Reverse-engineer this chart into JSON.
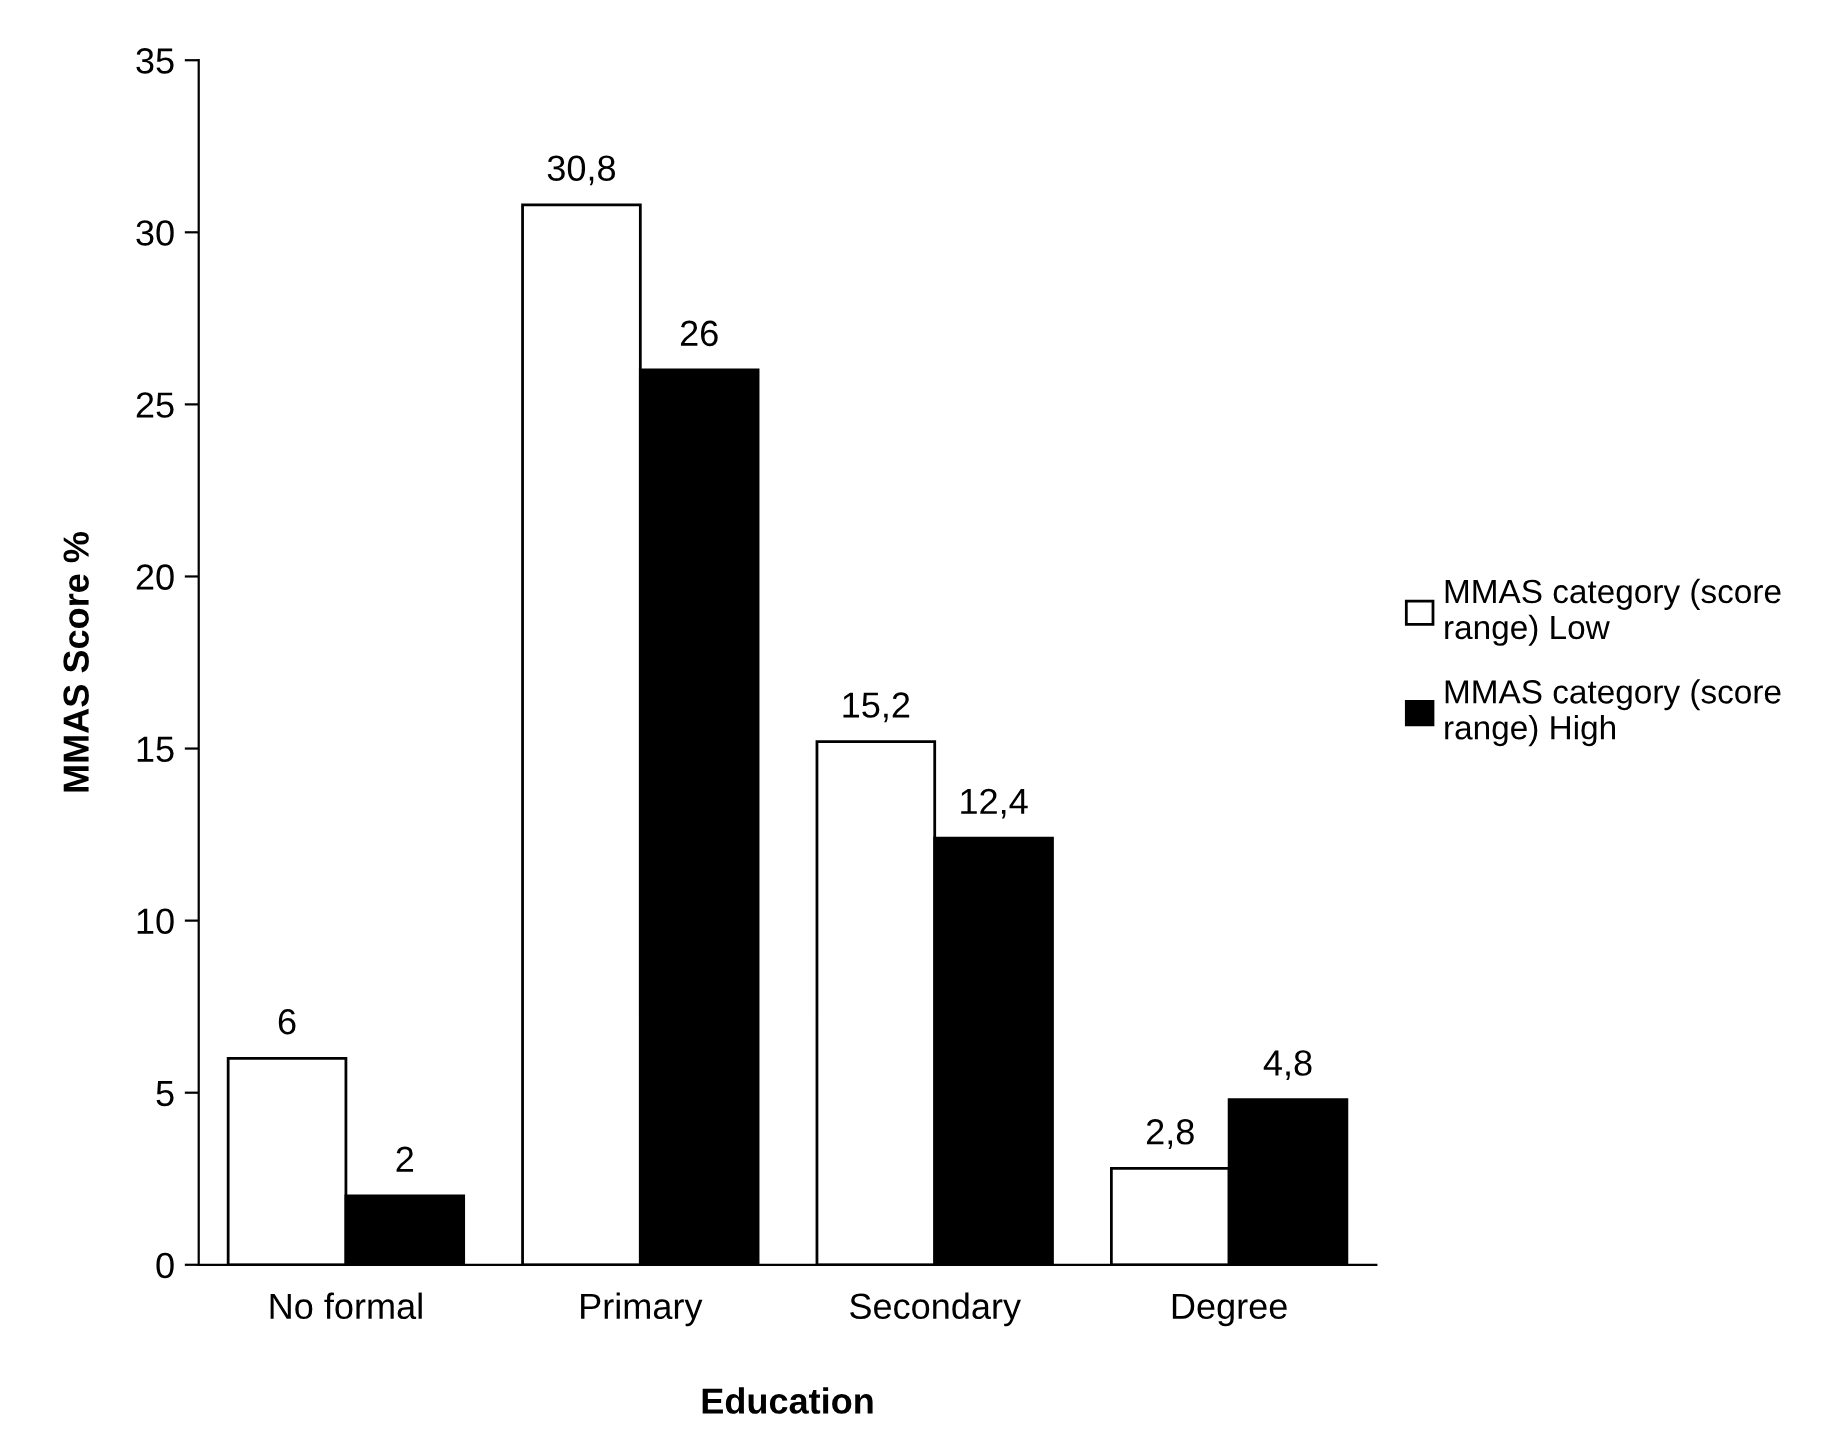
{
  "chart_data": {
    "type": "bar",
    "xlabel": "Education",
    "ylabel": "MMAS Score %",
    "categories": [
      "No formal",
      "Primary",
      "Secondary",
      "Degree"
    ],
    "series": [
      {
        "name": "MMAS category (score range) Low",
        "color": "#ffffff",
        "values": [
          6,
          30.8,
          15.2,
          2.8
        ],
        "value_labels": [
          "6",
          "30,8",
          "15,2",
          "2,8"
        ]
      },
      {
        "name": "MMAS category (score range) High",
        "color": "#000000",
        "values": [
          2,
          26,
          12.4,
          4.8
        ],
        "value_labels": [
          "2",
          "26",
          "12,4",
          "4,8"
        ]
      }
    ],
    "ylim": [
      0,
      35
    ],
    "yticks": [
      0,
      5,
      10,
      15,
      20,
      25,
      30,
      35
    ],
    "grid": false,
    "legend": "right"
  }
}
